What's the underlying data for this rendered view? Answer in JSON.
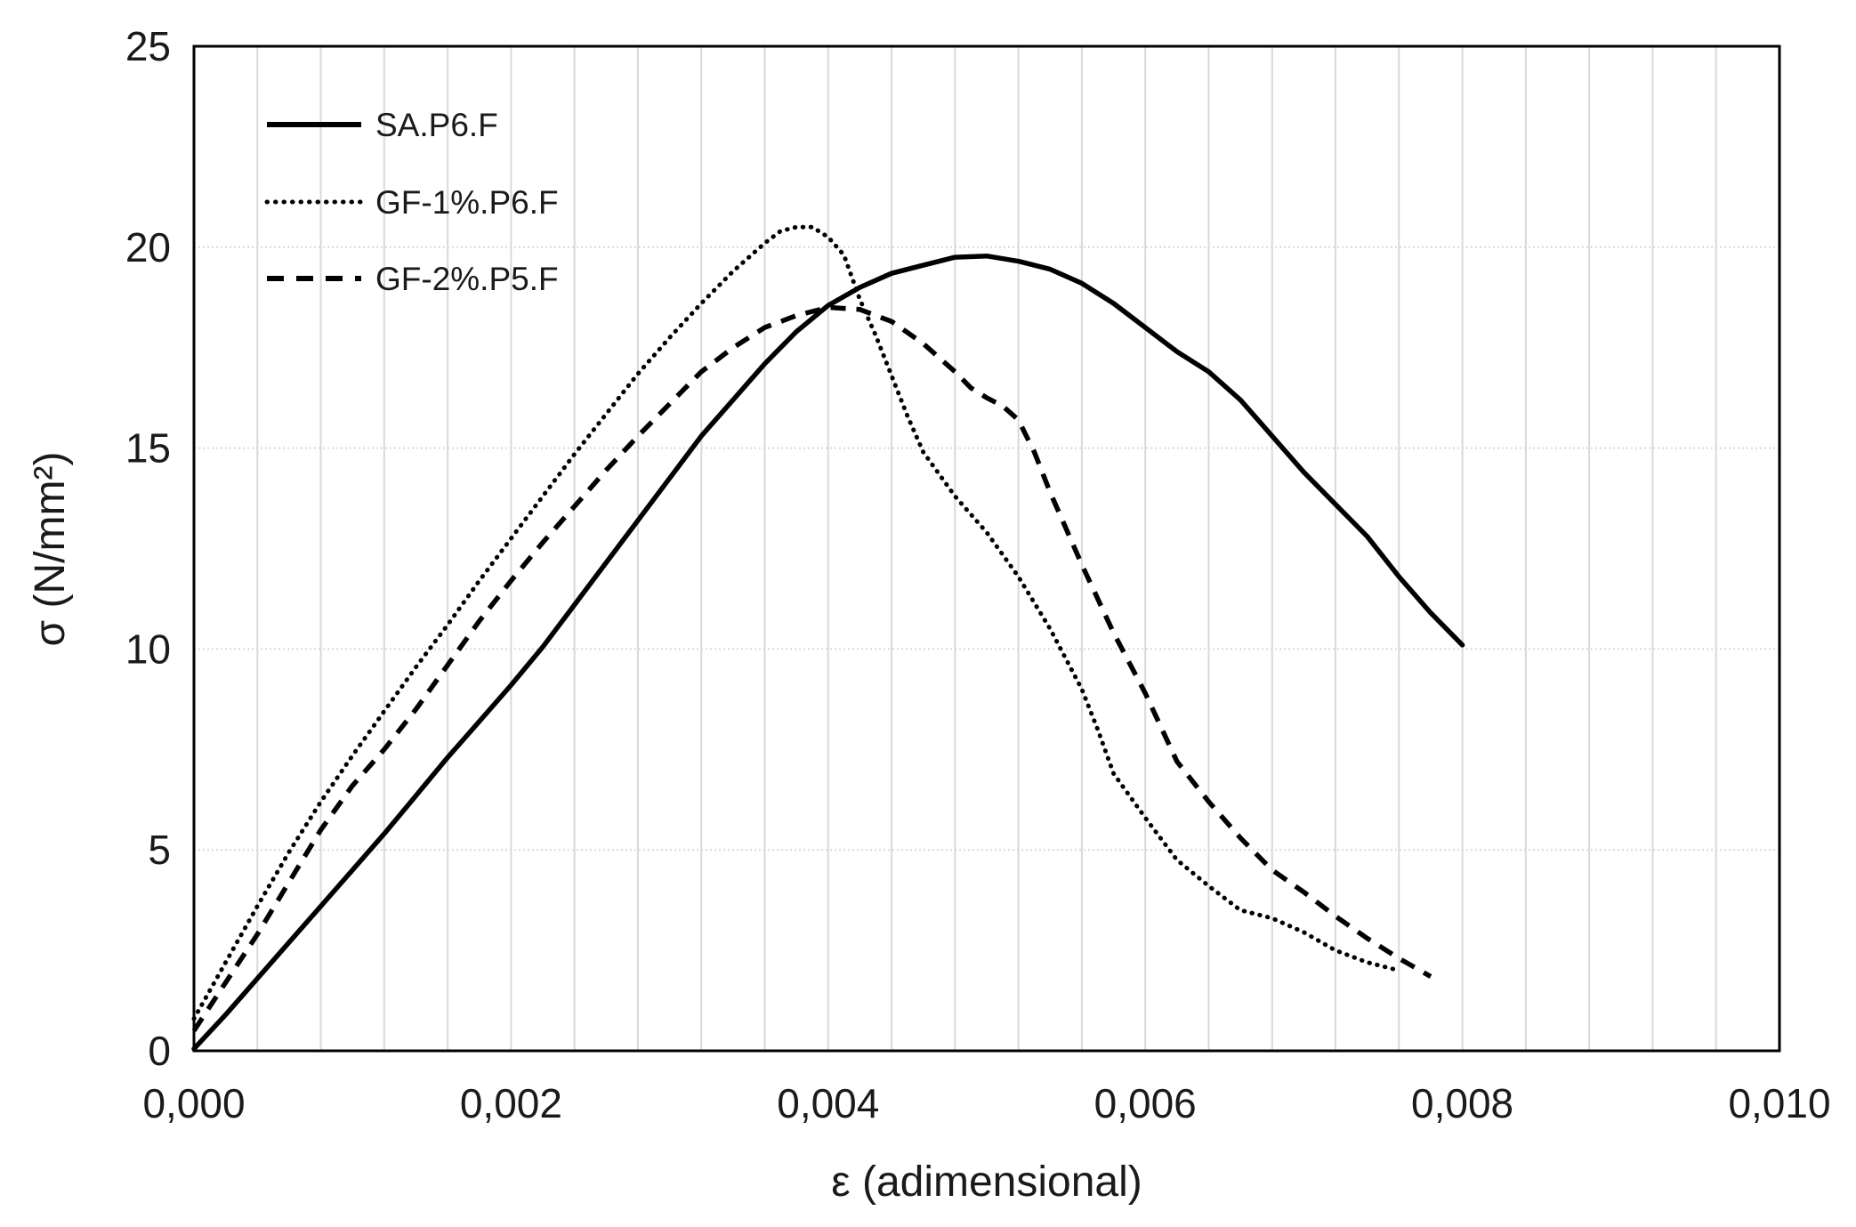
{
  "figure": {
    "background_color": "#ffffff",
    "text_color": "#1a1a1a",
    "grid_color": "#d9d9d9",
    "axis_color": "#000000",
    "curve_color": "#000000"
  },
  "chart_data": {
    "type": "line",
    "title": "",
    "xlabel": "ε (adimensional)",
    "ylabel": "σ  (N/mm²)",
    "xlim": [
      0,
      0.01
    ],
    "ylim": [
      0,
      25
    ],
    "x_tick_labels": [
      "0,000",
      "0,002",
      "0,004",
      "0,006",
      "0,008",
      "0,010"
    ],
    "x_tick_values": [
      0,
      0.002,
      0.004,
      0.006,
      0.008,
      0.01
    ],
    "y_tick_labels": [
      "0",
      "5",
      "10",
      "15",
      "20",
      "25"
    ],
    "y_tick_values": [
      0,
      5,
      10,
      15,
      20,
      25
    ],
    "x_minor_grid_step": 0.0004,
    "y_major_grid_step": 5,
    "grid_on": true,
    "legend_position": "top-left-inside",
    "decimal_separator": "comma",
    "series": [
      {
        "name": "SA.P6.F",
        "style": "solid",
        "peak": {
          "eps": 0.0048,
          "sigma": 19.8
        },
        "points": [
          [
            0.0,
            0.05
          ],
          [
            0.0002,
            0.9
          ],
          [
            0.0004,
            1.8
          ],
          [
            0.0006,
            2.7
          ],
          [
            0.0008,
            3.6
          ],
          [
            0.001,
            4.5
          ],
          [
            0.0012,
            5.4
          ],
          [
            0.0014,
            6.35
          ],
          [
            0.0016,
            7.3
          ],
          [
            0.0018,
            8.2
          ],
          [
            0.002,
            9.1
          ],
          [
            0.0022,
            10.05
          ],
          [
            0.0024,
            11.1
          ],
          [
            0.0026,
            12.15
          ],
          [
            0.0028,
            13.2
          ],
          [
            0.003,
            14.25
          ],
          [
            0.0032,
            15.3
          ],
          [
            0.0034,
            16.2
          ],
          [
            0.0036,
            17.1
          ],
          [
            0.0038,
            17.9
          ],
          [
            0.004,
            18.55
          ],
          [
            0.0042,
            19.0
          ],
          [
            0.0044,
            19.35
          ],
          [
            0.0046,
            19.55
          ],
          [
            0.0048,
            19.75
          ],
          [
            0.005,
            19.78
          ],
          [
            0.0052,
            19.65
          ],
          [
            0.0054,
            19.45
          ],
          [
            0.0056,
            19.1
          ],
          [
            0.0058,
            18.6
          ],
          [
            0.006,
            18.0
          ],
          [
            0.0062,
            17.4
          ],
          [
            0.0064,
            16.9
          ],
          [
            0.0066,
            16.2
          ],
          [
            0.0068,
            15.3
          ],
          [
            0.007,
            14.4
          ],
          [
            0.0072,
            13.6
          ],
          [
            0.0074,
            12.8
          ],
          [
            0.0076,
            11.8
          ],
          [
            0.0078,
            10.9
          ],
          [
            0.008,
            10.1
          ]
        ]
      },
      {
        "name": "GF-1%.P6.F",
        "style": "dotted",
        "peak": {
          "eps": 0.0038,
          "sigma": 20.5
        },
        "points": [
          [
            0.0,
            0.8
          ],
          [
            0.0002,
            2.2
          ],
          [
            0.0004,
            3.6
          ],
          [
            0.0006,
            4.95
          ],
          [
            0.0008,
            6.2
          ],
          [
            0.001,
            7.35
          ],
          [
            0.0012,
            8.45
          ],
          [
            0.0014,
            9.55
          ],
          [
            0.0016,
            10.6
          ],
          [
            0.0018,
            11.7
          ],
          [
            0.002,
            12.75
          ],
          [
            0.0022,
            13.8
          ],
          [
            0.0024,
            14.85
          ],
          [
            0.0026,
            15.85
          ],
          [
            0.0028,
            16.85
          ],
          [
            0.003,
            17.75
          ],
          [
            0.0032,
            18.6
          ],
          [
            0.0034,
            19.4
          ],
          [
            0.0036,
            20.1
          ],
          [
            0.0037,
            20.4
          ],
          [
            0.0038,
            20.5
          ],
          [
            0.0039,
            20.5
          ],
          [
            0.004,
            20.25
          ],
          [
            0.0041,
            19.8
          ],
          [
            0.0042,
            18.7
          ],
          [
            0.0043,
            17.8
          ],
          [
            0.0044,
            16.8
          ],
          [
            0.0045,
            15.8
          ],
          [
            0.0046,
            14.9
          ],
          [
            0.0048,
            13.8
          ],
          [
            0.005,
            12.9
          ],
          [
            0.0052,
            11.8
          ],
          [
            0.0054,
            10.5
          ],
          [
            0.0056,
            9.0
          ],
          [
            0.0057,
            8.0
          ],
          [
            0.0058,
            6.9
          ],
          [
            0.006,
            5.8
          ],
          [
            0.0062,
            4.75
          ],
          [
            0.0064,
            4.1
          ],
          [
            0.0066,
            3.5
          ],
          [
            0.0068,
            3.3
          ],
          [
            0.007,
            2.95
          ],
          [
            0.0072,
            2.5
          ],
          [
            0.0074,
            2.2
          ],
          [
            0.0076,
            2.0
          ]
        ]
      },
      {
        "name": "GF-2%.P5.F",
        "style": "dashed",
        "peak": {
          "eps": 0.004,
          "sigma": 18.5
        },
        "points": [
          [
            0.0,
            0.5
          ],
          [
            0.0002,
            1.7
          ],
          [
            0.0004,
            2.9
          ],
          [
            0.0006,
            4.2
          ],
          [
            0.0008,
            5.5
          ],
          [
            0.001,
            6.6
          ],
          [
            0.0012,
            7.5
          ],
          [
            0.0014,
            8.5
          ],
          [
            0.0016,
            9.6
          ],
          [
            0.0018,
            10.7
          ],
          [
            0.002,
            11.7
          ],
          [
            0.0022,
            12.65
          ],
          [
            0.0024,
            13.55
          ],
          [
            0.0026,
            14.45
          ],
          [
            0.0028,
            15.3
          ],
          [
            0.003,
            16.1
          ],
          [
            0.0032,
            16.9
          ],
          [
            0.0034,
            17.5
          ],
          [
            0.0036,
            18.0
          ],
          [
            0.0038,
            18.3
          ],
          [
            0.004,
            18.5
          ],
          [
            0.0042,
            18.45
          ],
          [
            0.0044,
            18.15
          ],
          [
            0.0046,
            17.6
          ],
          [
            0.0048,
            16.9
          ],
          [
            0.0049,
            16.5
          ],
          [
            0.005,
            16.25
          ],
          [
            0.0051,
            16.05
          ],
          [
            0.0052,
            15.7
          ],
          [
            0.0053,
            14.9
          ],
          [
            0.0054,
            13.9
          ],
          [
            0.0055,
            13.0
          ],
          [
            0.0056,
            12.1
          ],
          [
            0.0058,
            10.4
          ],
          [
            0.006,
            8.9
          ],
          [
            0.0062,
            7.2
          ],
          [
            0.0064,
            6.2
          ],
          [
            0.0066,
            5.3
          ],
          [
            0.0068,
            4.5
          ],
          [
            0.007,
            3.95
          ],
          [
            0.0072,
            3.35
          ],
          [
            0.0074,
            2.8
          ],
          [
            0.0076,
            2.3
          ],
          [
            0.0078,
            1.85
          ]
        ]
      }
    ]
  }
}
